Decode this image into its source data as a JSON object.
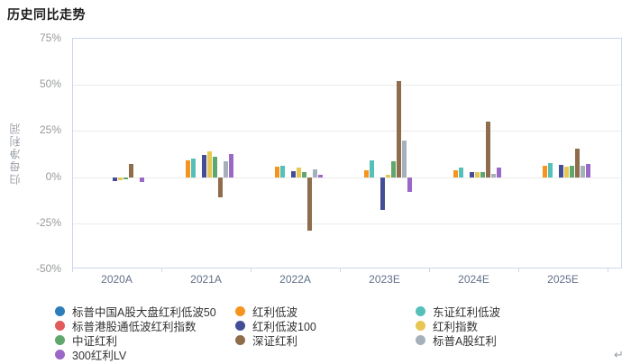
{
  "chart_data": {
    "type": "bar",
    "title": "历史同比走势",
    "xlabel": "",
    "ylabel": "归母净利润",
    "ylim": [
      -50,
      75
    ],
    "yticks": [
      "75%",
      "50%",
      "25%",
      "0%",
      "-25%",
      "-50%"
    ],
    "grid": true,
    "legend_position": "bottom",
    "categories": [
      "2020A",
      "2021A",
      "2022A",
      "2023E",
      "2024E",
      "2025E"
    ],
    "series": [
      {
        "name": "标普中国A股大盘红利低波50",
        "color": "#2d7dbb",
        "values": [
          0,
          0,
          0,
          0,
          0,
          0
        ]
      },
      {
        "name": "红利低波",
        "color": "#f6941d",
        "values": [
          0,
          9,
          5.5,
          3.5,
          3.5,
          6
        ]
      },
      {
        "name": "东证红利低波",
        "color": "#55c0b8",
        "values": [
          0,
          10,
          6,
          9,
          5,
          7.5
        ]
      },
      {
        "name": "标普港股通低波红利指数",
        "color": "#e25a5a",
        "values": [
          0,
          0,
          0,
          0,
          0,
          0
        ]
      },
      {
        "name": "红利低波100",
        "color": "#434e97",
        "values": [
          -2,
          12,
          3,
          -18,
          2.5,
          6.5
        ]
      },
      {
        "name": "红利指数",
        "color": "#e8c654",
        "values": [
          -1.5,
          14,
          5,
          1.5,
          2.5,
          5.5
        ]
      },
      {
        "name": "中证红利",
        "color": "#5fa76c",
        "values": [
          -1,
          11,
          2.5,
          8.5,
          2.5,
          6
        ]
      },
      {
        "name": "深证红利",
        "color": "#8e6c4c",
        "values": [
          7,
          -11,
          -29,
          52,
          30,
          15.5
        ]
      },
      {
        "name": "标普A股红利",
        "color": "#a6b0ba",
        "values": [
          0,
          8.5,
          4,
          20,
          2,
          6
        ]
      },
      {
        "name": "300红利LV",
        "color": "#9a68c6",
        "values": [
          -2.5,
          12.5,
          1.5,
          -8,
          5,
          7
        ]
      }
    ],
    "legend_columns": [
      [
        0,
        3,
        6,
        9
      ],
      [
        1,
        4,
        7
      ],
      [
        2,
        5,
        8
      ]
    ]
  },
  "icons": {
    "return_label": "↵"
  },
  "colors": {
    "plot_border": "#ccd6eb",
    "gridline": "#ebebeb",
    "ytick_text": "#97999c",
    "xtick_text": "#62708a",
    "legend_text": "#333333",
    "title_text": "#1c1c1c",
    "background": "#ffffff"
  }
}
